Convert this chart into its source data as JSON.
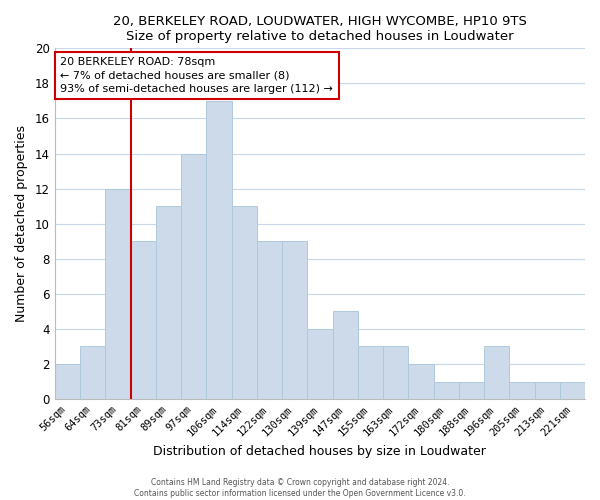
{
  "title": "20, BERKELEY ROAD, LOUDWATER, HIGH WYCOMBE, HP10 9TS",
  "subtitle": "Size of property relative to detached houses in Loudwater",
  "xlabel": "Distribution of detached houses by size in Loudwater",
  "ylabel": "Number of detached properties",
  "bin_labels": [
    "56sqm",
    "64sqm",
    "73sqm",
    "81sqm",
    "89sqm",
    "97sqm",
    "106sqm",
    "114sqm",
    "122sqm",
    "130sqm",
    "139sqm",
    "147sqm",
    "155sqm",
    "163sqm",
    "172sqm",
    "180sqm",
    "188sqm",
    "196sqm",
    "205sqm",
    "213sqm",
    "221sqm"
  ],
  "bar_heights": [
    2,
    3,
    12,
    9,
    11,
    14,
    17,
    11,
    9,
    9,
    4,
    5,
    3,
    3,
    2,
    1,
    1,
    3,
    1,
    1,
    1
  ],
  "bar_color": "#ccdaea",
  "bar_edge_color": "#b0c8dc",
  "vline_x_index": 2,
  "vline_color": "#cc0000",
  "annotation_title": "20 BERKELEY ROAD: 78sqm",
  "annotation_line1": "← 7% of detached houses are smaller (8)",
  "annotation_line2": "93% of semi-detached houses are larger (112) →",
  "annotation_box_color": "#ffffff",
  "annotation_box_edge": "#cc0000",
  "ylim": [
    0,
    20
  ],
  "yticks": [
    0,
    2,
    4,
    6,
    8,
    10,
    12,
    14,
    16,
    18,
    20
  ],
  "footer1": "Contains HM Land Registry data © Crown copyright and database right 2024.",
  "footer2": "Contains public sector information licensed under the Open Government Licence v3.0."
}
